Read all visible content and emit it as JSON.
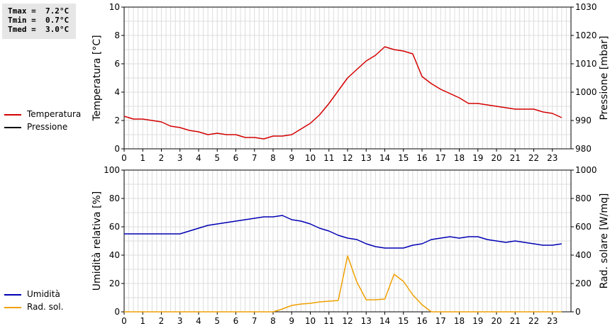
{
  "stats": {
    "tmax": "Tmax =  7.2°C",
    "tmin": "Tmin =  0.7°C",
    "tmed": "Tmed =  3.0°C"
  },
  "legend_top": [
    {
      "label": "Temperatura",
      "color": "#d40000"
    },
    {
      "label": "Pressione",
      "color": "#000000"
    }
  ],
  "legend_bottom": [
    {
      "label": "Umidità",
      "color": "#0000b4"
    },
    {
      "label": "Rad. sol.",
      "color": "#f0a000"
    }
  ],
  "chart_data": [
    {
      "type": "line",
      "ylabel": "Temperatura [°C]",
      "y2label": "Pressione [mbar]",
      "ylim": [
        0,
        10
      ],
      "y2lim": [
        980,
        1030
      ],
      "xlim": [
        0,
        24
      ],
      "yticks": [
        0,
        2,
        4,
        6,
        8,
        10
      ],
      "y2ticks": [
        980,
        990,
        1000,
        1010,
        1020,
        1030
      ],
      "xticks": [
        "0",
        "1",
        "2",
        "3",
        "4",
        "5",
        "6",
        "7",
        "8",
        "9",
        "10",
        "11",
        "12",
        "13",
        "14",
        "15",
        "16",
        "17",
        "18",
        "19",
        "20",
        "21",
        "22",
        "23"
      ],
      "grid": true,
      "series": [
        {
          "name": "Temperatura",
          "color": "#d40000",
          "axis": "left",
          "x": [
            0,
            0.25,
            0.5,
            1,
            1.5,
            2,
            2.5,
            3,
            3.5,
            4,
            4.5,
            5,
            5.5,
            6,
            6.5,
            7,
            7.5,
            8,
            8.5,
            9,
            9.5,
            10,
            10.5,
            11,
            11.5,
            12,
            12.5,
            13,
            13.5,
            14,
            14.5,
            15,
            15.5,
            16,
            16.5,
            17,
            17.5,
            18,
            18.5,
            19,
            19.5,
            20,
            20.5,
            21,
            21.5,
            22,
            22.5,
            23,
            23.5
          ],
          "y": [
            2.3,
            2.2,
            2.1,
            2.1,
            2.0,
            1.9,
            1.6,
            1.5,
            1.3,
            1.2,
            1.0,
            1.1,
            1.0,
            1.0,
            0.8,
            0.8,
            0.7,
            0.9,
            0.9,
            1.0,
            1.4,
            1.8,
            2.4,
            3.2,
            4.1,
            5.0,
            5.6,
            6.2,
            6.6,
            7.2,
            7.0,
            6.9,
            6.7,
            5.1,
            4.6,
            4.2,
            3.9,
            3.6,
            3.2,
            3.2,
            3.1,
            3.0,
            2.9,
            2.8,
            2.8,
            2.8,
            2.6,
            2.5,
            2.2
          ]
        },
        {
          "name": "Pressione",
          "color": "#000000",
          "axis": "right",
          "x": [],
          "y": []
        }
      ]
    },
    {
      "type": "line",
      "ylabel": "Umidità relativa [%]",
      "y2label": "Rad. solare [W/mq]",
      "ylim": [
        0,
        100
      ],
      "y2lim": [
        0,
        1000
      ],
      "xlim": [
        0,
        24
      ],
      "yticks": [
        0,
        20,
        40,
        60,
        80,
        100
      ],
      "y2ticks": [
        0,
        200,
        400,
        600,
        800,
        1000
      ],
      "xticks": [
        "0",
        "1",
        "2",
        "3",
        "4",
        "5",
        "6",
        "7",
        "8",
        "9",
        "10",
        "11",
        "12",
        "13",
        "14",
        "15",
        "16",
        "17",
        "18",
        "19",
        "20",
        "21",
        "22",
        "23"
      ],
      "grid": true,
      "series": [
        {
          "name": "Umidità",
          "color": "#0000b4",
          "axis": "left",
          "x": [
            0,
            0.5,
            1,
            1.5,
            2,
            2.5,
            3,
            3.5,
            4,
            4.5,
            5,
            5.5,
            6,
            6.5,
            7,
            7.5,
            8,
            8.5,
            9,
            9.5,
            10,
            10.5,
            11,
            11.5,
            12,
            12.5,
            13,
            13.5,
            14,
            14.5,
            15,
            15.5,
            16,
            16.5,
            17,
            17.5,
            18,
            18.5,
            19,
            19.5,
            20,
            20.5,
            21,
            21.5,
            22,
            22.5,
            23,
            23.5
          ],
          "y": [
            55,
            55,
            55,
            55,
            55,
            55,
            55,
            57,
            59,
            61,
            62,
            63,
            64,
            65,
            66,
            67,
            67,
            68,
            65,
            64,
            62,
            59,
            57,
            54,
            52,
            51,
            48,
            46,
            45,
            45,
            45,
            47,
            48,
            51,
            52,
            53,
            52,
            53,
            53,
            51,
            50,
            49,
            50,
            49,
            48,
            47,
            47,
            48
          ]
        },
        {
          "name": "Rad. sol.",
          "color": "#f0a000",
          "axis": "right",
          "x": [
            0,
            1,
            2,
            3,
            4,
            5,
            6,
            7,
            8,
            8.25,
            8.5,
            9,
            9.5,
            10,
            10.5,
            11,
            11.5,
            12,
            12.5,
            13,
            13.5,
            14,
            14.5,
            15,
            15.5,
            16,
            16.5,
            17,
            18,
            19,
            20,
            21,
            22,
            23,
            23.5
          ],
          "y": [
            0,
            0,
            0,
            0,
            0,
            0,
            0,
            0,
            0,
            10,
            20,
            45,
            55,
            60,
            70,
            75,
            80,
            395,
            210,
            85,
            85,
            90,
            265,
            215,
            120,
            50,
            0,
            0,
            0,
            0,
            0,
            0,
            0,
            0,
            0
          ]
        }
      ]
    }
  ]
}
